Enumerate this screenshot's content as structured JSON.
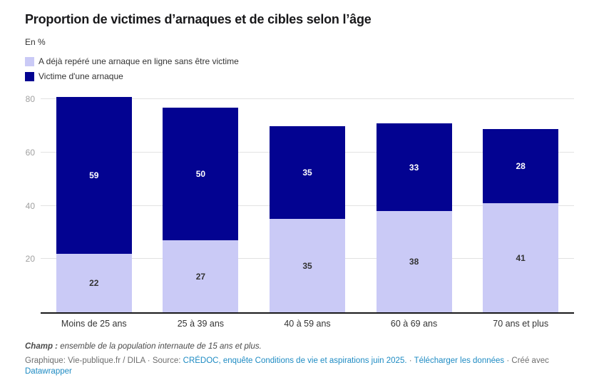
{
  "title": "Proportion de victimes d’arnaques et de cibles selon l’âge",
  "subtitle": "En %",
  "legend": [
    {
      "label": "A déjà repéré une arnaque en ligne sans être victime",
      "color": "#cacaf6"
    },
    {
      "label": "Victime d'une arnaque",
      "color": "#030391"
    }
  ],
  "chart_data": {
    "type": "bar",
    "stacked": true,
    "title": "Proportion de victimes d’arnaques et de cibles selon l’âge",
    "unit_label": "En %",
    "categories": [
      "Moins de 25 ans",
      "25 à 39 ans",
      "40 à 59 ans",
      "60 à 69 ans",
      "70 ans et plus"
    ],
    "series": [
      {
        "name": "A déjà repéré une arnaque en ligne sans être victime",
        "color": "#cacaf6",
        "label_color": "#333333",
        "values": [
          22,
          27,
          35,
          38,
          41
        ]
      },
      {
        "name": "Victime d'une arnaque",
        "color": "#030391",
        "label_color": "#ffffff",
        "values": [
          59,
          50,
          35,
          33,
          28
        ]
      }
    ],
    "totals": [
      81,
      77,
      70,
      71,
      69
    ],
    "yticks": [
      20,
      40,
      60,
      80
    ],
    "ylim": [
      0,
      82
    ],
    "grid": true,
    "legend_position": "top"
  },
  "footer": {
    "champ_label": "Champ :",
    "champ_text": "ensemble de la population internaute de 15 ans et plus.",
    "graphic": "Graphique: Vie-publique.fr / DILA",
    "separator": "·",
    "source_label": "Source:",
    "source_link": "CRÉDOC, enquête Conditions de vie et aspirations juin 2025.",
    "download_link": "Télécharger les données",
    "created_with": "Créé avec",
    "datawrapper_link": "Datawrapper"
  }
}
